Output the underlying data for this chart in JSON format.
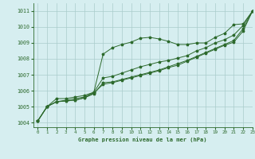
{
  "bg_color": "#d6eef0",
  "grid_color": "#aacccc",
  "line_color": "#2d6a2d",
  "title": "Graphe pression niveau de la mer (hPa)",
  "xlim": [
    -0.5,
    23
  ],
  "ylim": [
    1003.7,
    1011.5
  ],
  "xticks": [
    0,
    1,
    2,
    3,
    4,
    5,
    6,
    7,
    8,
    9,
    10,
    11,
    12,
    13,
    14,
    15,
    16,
    17,
    18,
    19,
    20,
    21,
    22,
    23
  ],
  "yticks": [
    1004,
    1005,
    1006,
    1007,
    1008,
    1009,
    1010,
    1011
  ],
  "series": [
    [
      1004.1,
      1005.0,
      1005.5,
      1005.5,
      1005.6,
      1005.7,
      1005.9,
      1008.3,
      1008.7,
      1008.9,
      1009.05,
      1009.3,
      1009.35,
      1009.25,
      1009.1,
      1008.9,
      1008.9,
      1009.0,
      1009.0,
      1009.35,
      1009.6,
      1010.15,
      1010.2,
      1011.0
    ],
    [
      1004.1,
      1005.0,
      1005.3,
      1005.4,
      1005.5,
      1005.6,
      1005.9,
      1006.8,
      1006.9,
      1007.1,
      1007.3,
      1007.5,
      1007.65,
      1007.8,
      1007.9,
      1008.05,
      1008.2,
      1008.5,
      1008.7,
      1009.0,
      1009.2,
      1009.5,
      1010.1,
      1011.0
    ],
    [
      1004.1,
      1005.0,
      1005.3,
      1005.35,
      1005.4,
      1005.55,
      1005.8,
      1006.5,
      1006.55,
      1006.7,
      1006.85,
      1007.0,
      1007.15,
      1007.3,
      1007.5,
      1007.7,
      1007.9,
      1008.15,
      1008.4,
      1008.65,
      1008.9,
      1009.15,
      1009.9,
      1011.0
    ],
    [
      1004.1,
      1005.0,
      1005.3,
      1005.35,
      1005.4,
      1005.55,
      1005.85,
      1006.4,
      1006.5,
      1006.65,
      1006.8,
      1006.95,
      1007.1,
      1007.25,
      1007.45,
      1007.6,
      1007.85,
      1008.1,
      1008.35,
      1008.6,
      1008.85,
      1009.05,
      1009.75,
      1011.0
    ]
  ]
}
